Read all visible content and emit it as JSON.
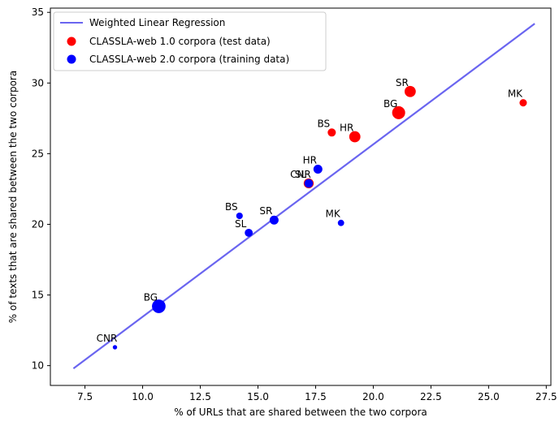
{
  "chart_data": {
    "type": "scatter",
    "title": "",
    "xlabel": "% of URLs that are shared between the two corpora",
    "ylabel": "% of texts that are shared between the two corpora",
    "xlim": [
      6.0,
      27.7
    ],
    "ylim": [
      8.6,
      35.3
    ],
    "xticks": [
      7.5,
      10.0,
      12.5,
      15.0,
      17.5,
      20.0,
      22.5,
      25.0,
      27.5
    ],
    "xtick_labels": [
      "7.5",
      "10.0",
      "12.5",
      "15.0",
      "17.5",
      "20.0",
      "22.5",
      "25.0",
      "27.5"
    ],
    "yticks": [
      10,
      15,
      20,
      25,
      30,
      35
    ],
    "ytick_labels": [
      "10",
      "15",
      "20",
      "25",
      "30",
      "35"
    ],
    "grid": false,
    "legend_position": "top-left",
    "regression": {
      "name": "Weighted Linear Regression",
      "color": "#6a65f0",
      "x": [
        7.0,
        27.0
      ],
      "y": [
        9.8,
        34.2
      ]
    },
    "series": [
      {
        "name": "CLASSLA-web 1.0 corpora (test data)",
        "color": "#ff0000",
        "points": [
          {
            "label": "SR",
            "x": 21.6,
            "y": 29.4,
            "size": 72
          },
          {
            "label": "BG",
            "x": 21.1,
            "y": 27.9,
            "size": 100
          },
          {
            "label": "MK",
            "x": 26.5,
            "y": 28.6,
            "size": 28
          },
          {
            "label": "BS",
            "x": 18.2,
            "y": 26.5,
            "size": 36
          },
          {
            "label": "HR",
            "x": 19.2,
            "y": 26.2,
            "size": 72
          },
          {
            "label": "CNR",
            "x": 17.2,
            "y": 22.9,
            "size": 56
          }
        ]
      },
      {
        "name": "CLASSLA-web 2.0 corpora (training data)",
        "color": "#0000ff",
        "points": [
          {
            "label": "HR",
            "x": 17.6,
            "y": 23.9,
            "size": 44
          },
          {
            "label": "SL",
            "x": 17.2,
            "y": 22.9,
            "size": 40
          },
          {
            "label": "BS",
            "x": 14.2,
            "y": 20.6,
            "size": 22
          },
          {
            "label": "SL",
            "x": 14.6,
            "y": 19.4,
            "size": 34
          },
          {
            "label": "SR",
            "x": 15.7,
            "y": 20.3,
            "size": 44
          },
          {
            "label": "MK",
            "x": 18.6,
            "y": 20.1,
            "size": 20
          },
          {
            "label": "BG",
            "x": 10.7,
            "y": 14.2,
            "size": 110
          },
          {
            "label": "CNR",
            "x": 8.8,
            "y": 11.3,
            "size": 8
          }
        ]
      }
    ]
  }
}
